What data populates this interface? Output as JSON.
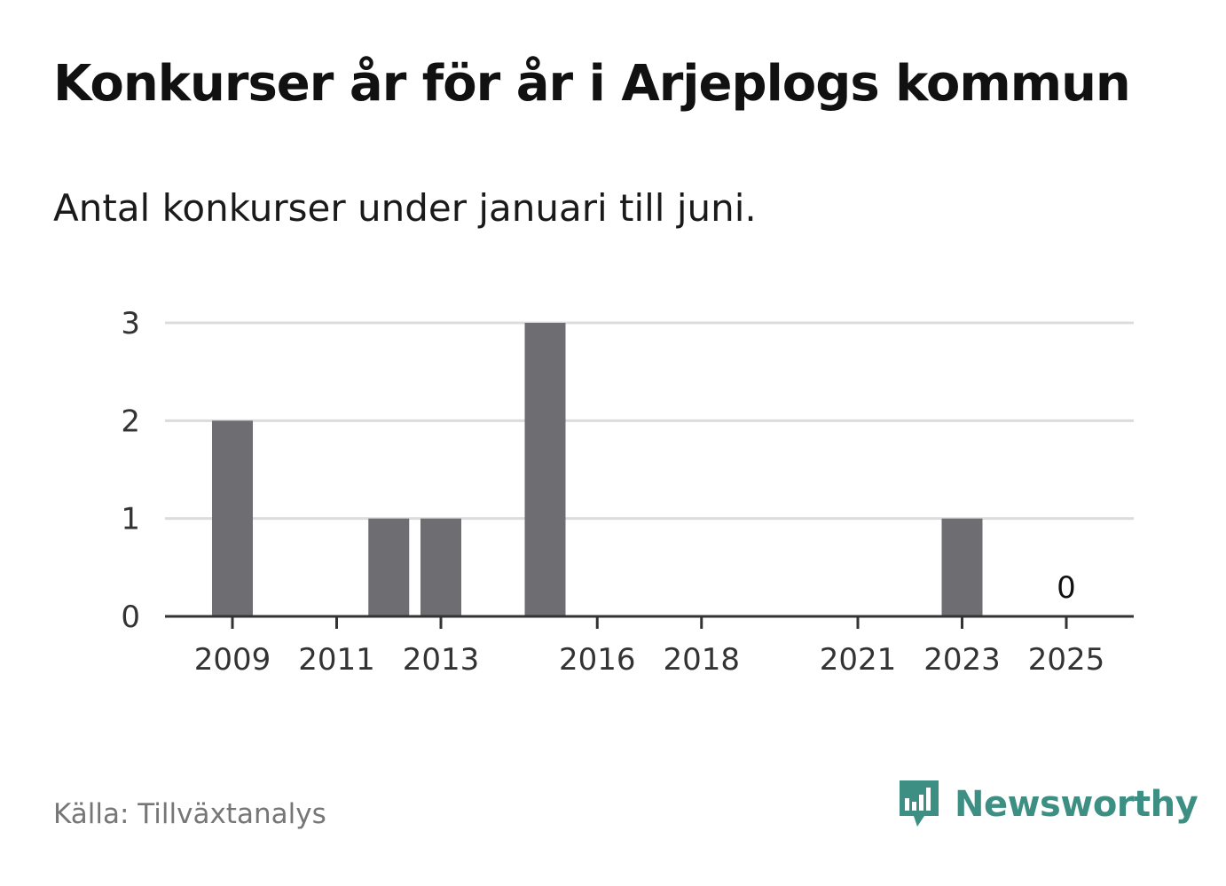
{
  "title": "Konkurser år för år i Arjeplogs kommun",
  "subtitle": "Antal konkurser under januari till juni.",
  "source": "Källa: Tillväxtanalys",
  "brand": {
    "name": "Newsworthy",
    "icon": "newsworthy-logo-icon",
    "color": "#3d8f84"
  },
  "colors": {
    "bar": "#6e6d72",
    "grid": "#dcdcdc",
    "axis": "#333333"
  },
  "chart_data": {
    "type": "bar",
    "x": [
      2009,
      2010,
      2011,
      2012,
      2013,
      2014,
      2015,
      2016,
      2017,
      2018,
      2019,
      2020,
      2021,
      2022,
      2023,
      2024,
      2025
    ],
    "values": [
      2,
      0,
      0,
      1,
      1,
      0,
      3,
      0,
      0,
      0,
      0,
      0,
      0,
      0,
      1,
      0,
      0
    ],
    "x_tick_labels": [
      "2009",
      "2011",
      "2013",
      "2016",
      "2018",
      "2021",
      "2023",
      "2025"
    ],
    "y_ticks": [
      0,
      1,
      2,
      3
    ],
    "ylim": [
      0,
      3
    ],
    "grid": true,
    "annotations": [
      {
        "x": 2025,
        "label": "0"
      }
    ],
    "xlabel": "",
    "ylabel": ""
  }
}
